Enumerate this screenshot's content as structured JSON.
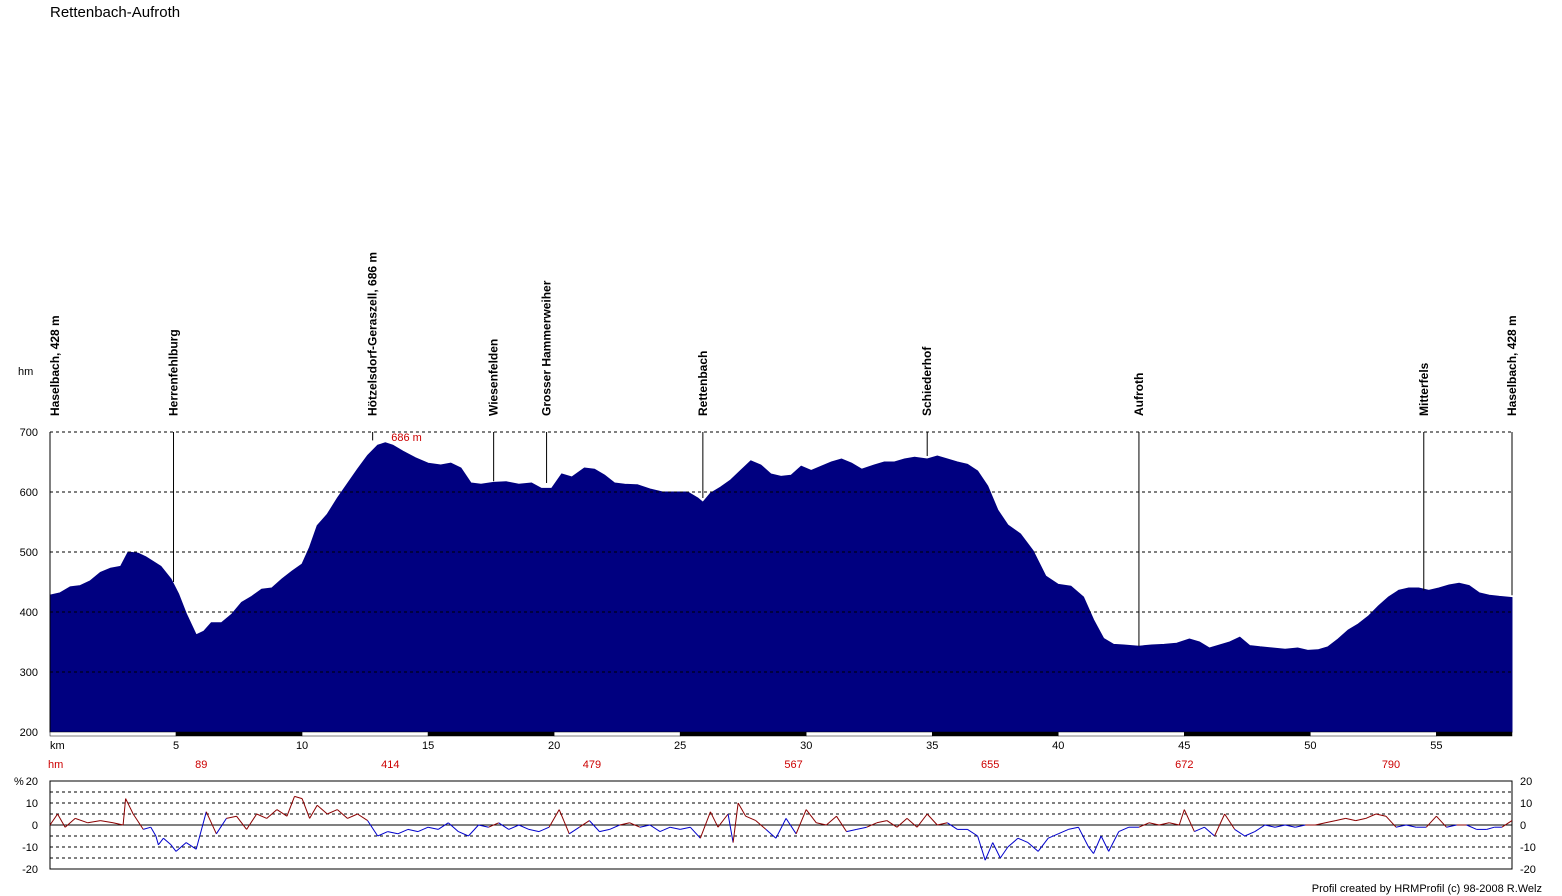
{
  "title": "Rettenbach-Aufroth",
  "credit": "Profil created by HRMProfil (c) 98-2008 R.Welz",
  "chart_data": [
    {
      "type": "area",
      "title": "Rettenbach-Aufroth",
      "ylabel": "hm",
      "xlabel": "km",
      "xlim": [
        0,
        58
      ],
      "ylim": [
        200,
        700
      ],
      "x_ticks": [
        5,
        10,
        15,
        20,
        25,
        30,
        35,
        40,
        45,
        50,
        55
      ],
      "y_ticks": [
        200,
        300,
        400,
        500,
        600,
        700
      ],
      "grid": true,
      "fill_color": "#000080",
      "max_label": "686 m",
      "cumulative_climb_label": "hm",
      "cumulative_climb": [
        {
          "km": 6,
          "value": "89"
        },
        {
          "km": 13.5,
          "value": "414"
        },
        {
          "km": 21.5,
          "value": "479"
        },
        {
          "km": 29.5,
          "value": "567"
        },
        {
          "km": 37.3,
          "value": "655"
        },
        {
          "km": 45,
          "value": "672"
        },
        {
          "km": 53.2,
          "value": "790"
        }
      ],
      "waypoints": [
        {
          "km": 0,
          "label": "Haselbach, 428 m",
          "elev": 428
        },
        {
          "km": 4.9,
          "label": "Herrenfehlburg",
          "elev": 450
        },
        {
          "km": 12.8,
          "label": "Hötzelsdorf-Geraszell, 686 m",
          "elev": 686
        },
        {
          "km": 17.6,
          "label": "Wiesenfelden",
          "elev": 618
        },
        {
          "km": 19.7,
          "label": "Grosser Hammerweiher",
          "elev": 615
        },
        {
          "km": 25.9,
          "label": "Rettenbach",
          "elev": 590
        },
        {
          "km": 34.8,
          "label": "Schiederhof",
          "elev": 660
        },
        {
          "km": 43.2,
          "label": "Aufroth",
          "elev": 343
        },
        {
          "km": 54.5,
          "label": "Mitterfels",
          "elev": 436
        },
        {
          "km": 58,
          "label": "Haselbach, 428 m",
          "elev": 428
        }
      ],
      "points": [
        [
          0,
          428
        ],
        [
          0.4,
          432
        ],
        [
          0.8,
          442
        ],
        [
          1.2,
          444
        ],
        [
          1.6,
          452
        ],
        [
          2,
          466
        ],
        [
          2.4,
          473
        ],
        [
          2.8,
          476
        ],
        [
          3.1,
          500
        ],
        [
          3.5,
          498
        ],
        [
          3.8,
          492
        ],
        [
          4.1,
          484
        ],
        [
          4.4,
          476
        ],
        [
          4.8,
          455
        ],
        [
          5.1,
          430
        ],
        [
          5.4,
          398
        ],
        [
          5.8,
          362
        ],
        [
          6.1,
          368
        ],
        [
          6.4,
          382
        ],
        [
          6.8,
          382
        ],
        [
          7.2,
          396
        ],
        [
          7.6,
          416
        ],
        [
          8,
          426
        ],
        [
          8.4,
          438
        ],
        [
          8.8,
          440
        ],
        [
          9.2,
          455
        ],
        [
          9.6,
          468
        ],
        [
          10,
          480
        ],
        [
          10.3,
          508
        ],
        [
          10.6,
          544
        ],
        [
          11,
          563
        ],
        [
          11.4,
          590
        ],
        [
          11.8,
          614
        ],
        [
          12.2,
          638
        ],
        [
          12.6,
          661
        ],
        [
          13,
          678
        ],
        [
          13.3,
          682
        ],
        [
          13.6,
          678
        ],
        [
          14,
          668
        ],
        [
          14.5,
          657
        ],
        [
          15,
          648
        ],
        [
          15.5,
          645
        ],
        [
          15.9,
          648
        ],
        [
          16.3,
          640
        ],
        [
          16.7,
          615
        ],
        [
          17.1,
          613
        ],
        [
          17.6,
          616
        ],
        [
          18.1,
          617
        ],
        [
          18.6,
          613
        ],
        [
          19.1,
          615
        ],
        [
          19.5,
          606
        ],
        [
          19.9,
          606
        ],
        [
          20.3,
          630
        ],
        [
          20.7,
          625
        ],
        [
          21.2,
          640
        ],
        [
          21.6,
          638
        ],
        [
          22,
          628
        ],
        [
          22.4,
          615
        ],
        [
          22.8,
          613
        ],
        [
          23.3,
          612
        ],
        [
          23.8,
          605
        ],
        [
          24.3,
          600
        ],
        [
          24.8,
          600
        ],
        [
          25.3,
          600
        ],
        [
          25.7,
          590
        ],
        [
          25.9,
          583
        ],
        [
          26.2,
          598
        ],
        [
          26.6,
          608
        ],
        [
          27,
          620
        ],
        [
          27.4,
          636
        ],
        [
          27.8,
          652
        ],
        [
          28.2,
          645
        ],
        [
          28.6,
          630
        ],
        [
          29,
          626
        ],
        [
          29.4,
          628
        ],
        [
          29.8,
          643
        ],
        [
          30.2,
          636
        ],
        [
          30.6,
          643
        ],
        [
          31,
          650
        ],
        [
          31.4,
          655
        ],
        [
          31.8,
          648
        ],
        [
          32.2,
          638
        ],
        [
          32.7,
          645
        ],
        [
          33.1,
          650
        ],
        [
          33.5,
          650
        ],
        [
          33.9,
          655
        ],
        [
          34.3,
          658
        ],
        [
          34.8,
          655
        ],
        [
          35.2,
          660
        ],
        [
          35.6,
          655
        ],
        [
          36,
          650
        ],
        [
          36.4,
          646
        ],
        [
          36.8,
          635
        ],
        [
          37.2,
          610
        ],
        [
          37.6,
          570
        ],
        [
          38,
          545
        ],
        [
          38.5,
          530
        ],
        [
          39,
          502
        ],
        [
          39.5,
          460
        ],
        [
          40,
          446
        ],
        [
          40.5,
          443
        ],
        [
          41,
          425
        ],
        [
          41.4,
          387
        ],
        [
          41.8,
          356
        ],
        [
          42.2,
          346
        ],
        [
          42.6,
          345
        ],
        [
          43.2,
          343
        ],
        [
          43.7,
          345
        ],
        [
          44.2,
          346
        ],
        [
          44.7,
          348
        ],
        [
          45.2,
          355
        ],
        [
          45.6,
          350
        ],
        [
          46,
          340
        ],
        [
          46.4,
          345
        ],
        [
          46.8,
          350
        ],
        [
          47.2,
          358
        ],
        [
          47.6,
          344
        ],
        [
          48,
          342
        ],
        [
          48.5,
          340
        ],
        [
          49,
          338
        ],
        [
          49.5,
          340
        ],
        [
          49.9,
          336
        ],
        [
          50.3,
          337
        ],
        [
          50.7,
          342
        ],
        [
          51.1,
          355
        ],
        [
          51.5,
          370
        ],
        [
          51.9,
          380
        ],
        [
          52.3,
          393
        ],
        [
          52.7,
          410
        ],
        [
          53.1,
          425
        ],
        [
          53.5,
          436
        ],
        [
          53.9,
          440
        ],
        [
          54.3,
          440
        ],
        [
          54.7,
          436
        ],
        [
          55.1,
          440
        ],
        [
          55.5,
          445
        ],
        [
          55.9,
          448
        ],
        [
          56.3,
          444
        ],
        [
          56.7,
          432
        ],
        [
          57.1,
          428
        ],
        [
          57.5,
          426
        ],
        [
          58,
          424
        ]
      ]
    },
    {
      "type": "line",
      "ylabel": "%",
      "ylim": [
        -20,
        20
      ],
      "y_ticks": [
        -20,
        -10,
        0,
        10,
        20
      ],
      "grid": true,
      "colors": {
        "positive": "#8b0000",
        "negative": "#0000cc"
      },
      "points": [
        [
          0,
          0
        ],
        [
          0.3,
          5
        ],
        [
          0.6,
          -1
        ],
        [
          1,
          3
        ],
        [
          1.5,
          1
        ],
        [
          2,
          2
        ],
        [
          2.5,
          1
        ],
        [
          2.9,
          0
        ],
        [
          3,
          12
        ],
        [
          3.3,
          5
        ],
        [
          3.7,
          -2
        ],
        [
          4,
          -1
        ],
        [
          4.2,
          -5
        ],
        [
          4.3,
          -9
        ],
        [
          4.5,
          -6
        ],
        [
          4.8,
          -9
        ],
        [
          5,
          -12
        ],
        [
          5.4,
          -8
        ],
        [
          5.8,
          -11
        ],
        [
          6.2,
          6
        ],
        [
          6.6,
          -4
        ],
        [
          7,
          3
        ],
        [
          7.4,
          4
        ],
        [
          7.8,
          -2
        ],
        [
          8.2,
          5
        ],
        [
          8.6,
          3
        ],
        [
          9,
          7
        ],
        [
          9.4,
          4
        ],
        [
          9.7,
          13
        ],
        [
          10,
          12
        ],
        [
          10.3,
          3
        ],
        [
          10.6,
          9
        ],
        [
          11,
          5
        ],
        [
          11.4,
          7
        ],
        [
          11.8,
          3
        ],
        [
          12.2,
          5
        ],
        [
          12.6,
          2
        ],
        [
          13,
          -5
        ],
        [
          13.4,
          -3
        ],
        [
          13.8,
          -4
        ],
        [
          14.2,
          -2
        ],
        [
          14.6,
          -3
        ],
        [
          15,
          -1
        ],
        [
          15.4,
          -2
        ],
        [
          15.8,
          1
        ],
        [
          16.2,
          -3
        ],
        [
          16.6,
          -5
        ],
        [
          17,
          0
        ],
        [
          17.4,
          -1
        ],
        [
          17.8,
          1
        ],
        [
          18.2,
          -2
        ],
        [
          18.6,
          0
        ],
        [
          19,
          -2
        ],
        [
          19.4,
          -3
        ],
        [
          19.8,
          -1
        ],
        [
          20.2,
          7
        ],
        [
          20.6,
          -4
        ],
        [
          21,
          -1
        ],
        [
          21.4,
          2
        ],
        [
          21.8,
          -3
        ],
        [
          22.2,
          -2
        ],
        [
          22.6,
          0
        ],
        [
          23,
          1
        ],
        [
          23.4,
          -1
        ],
        [
          23.8,
          0
        ],
        [
          24.2,
          -3
        ],
        [
          24.6,
          -1
        ],
        [
          25,
          -2
        ],
        [
          25.4,
          -1
        ],
        [
          25.8,
          -6
        ],
        [
          26.2,
          6
        ],
        [
          26.5,
          -1
        ],
        [
          26.9,
          5
        ],
        [
          27.1,
          -8
        ],
        [
          27.3,
          10
        ],
        [
          27.6,
          4
        ],
        [
          28,
          2
        ],
        [
          28.4,
          -2
        ],
        [
          28.8,
          -6
        ],
        [
          29.2,
          3
        ],
        [
          29.6,
          -4
        ],
        [
          30,
          7
        ],
        [
          30.4,
          1
        ],
        [
          30.8,
          0
        ],
        [
          31.2,
          4
        ],
        [
          31.6,
          -3
        ],
        [
          32,
          -2
        ],
        [
          32.4,
          -1
        ],
        [
          32.8,
          1
        ],
        [
          33.2,
          2
        ],
        [
          33.6,
          -1
        ],
        [
          34,
          3
        ],
        [
          34.4,
          -1
        ],
        [
          34.8,
          5
        ],
        [
          35.2,
          0
        ],
        [
          35.6,
          1
        ],
        [
          36,
          -2
        ],
        [
          36.4,
          -2
        ],
        [
          36.8,
          -5
        ],
        [
          37.1,
          -16
        ],
        [
          37.4,
          -8
        ],
        [
          37.7,
          -15
        ],
        [
          38,
          -10
        ],
        [
          38.4,
          -6
        ],
        [
          38.8,
          -8
        ],
        [
          39.2,
          -12
        ],
        [
          39.6,
          -6
        ],
        [
          40,
          -4
        ],
        [
          40.4,
          -2
        ],
        [
          40.8,
          -1
        ],
        [
          41.2,
          -10
        ],
        [
          41.4,
          -13
        ],
        [
          41.7,
          -5
        ],
        [
          42,
          -12
        ],
        [
          42.4,
          -3
        ],
        [
          42.8,
          -1
        ],
        [
          43.2,
          -1
        ],
        [
          43.6,
          1
        ],
        [
          44,
          0
        ],
        [
          44.4,
          1
        ],
        [
          44.8,
          0
        ],
        [
          45,
          7
        ],
        [
          45.4,
          -3
        ],
        [
          45.8,
          -1
        ],
        [
          46.2,
          -5
        ],
        [
          46.6,
          5
        ],
        [
          47,
          -2
        ],
        [
          47.4,
          -5
        ],
        [
          47.8,
          -3
        ],
        [
          48.2,
          0
        ],
        [
          48.6,
          -1
        ],
        [
          49,
          0
        ],
        [
          49.4,
          -1
        ],
        [
          49.8,
          0
        ],
        [
          50.2,
          0
        ],
        [
          50.6,
          1
        ],
        [
          51,
          2
        ],
        [
          51.4,
          3
        ],
        [
          51.8,
          2
        ],
        [
          52.2,
          3
        ],
        [
          52.6,
          5
        ],
        [
          53,
          4
        ],
        [
          53.4,
          -1
        ],
        [
          53.8,
          0
        ],
        [
          54.2,
          -1
        ],
        [
          54.6,
          -1
        ],
        [
          55,
          4
        ],
        [
          55.4,
          -1
        ],
        [
          55.8,
          0
        ],
        [
          56.2,
          0
        ],
        [
          56.6,
          -2
        ],
        [
          57,
          -2
        ],
        [
          57.3,
          -1
        ],
        [
          57.6,
          -1
        ],
        [
          58,
          2
        ]
      ]
    }
  ]
}
